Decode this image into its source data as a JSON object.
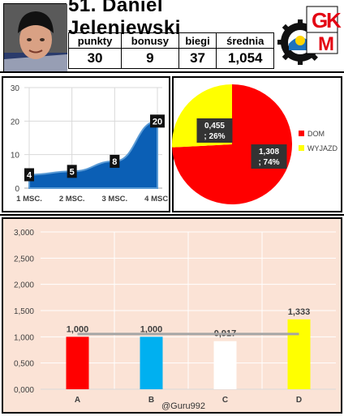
{
  "header": {
    "title": "51. Daniel Jeleniewski",
    "stats": [
      {
        "label": "punkty",
        "value": "30"
      },
      {
        "label": "bonusy",
        "value": "9"
      },
      {
        "label": "biegi",
        "value": "37"
      },
      {
        "label": "średnia",
        "value": "1,054"
      }
    ],
    "logo_text": [
      "G",
      "K",
      "M"
    ],
    "logo_colors": {
      "red": "#e30613",
      "yellow": "#ffd400",
      "blue": "#1e73be",
      "gear": "#111111"
    }
  },
  "chart_data": [
    {
      "type": "area",
      "categories": [
        "1 MSC.",
        "2 MSC.",
        "3 MSC.",
        "4 MSC."
      ],
      "values": [
        4,
        5,
        8,
        20
      ],
      "data_labels": [
        "4",
        "5",
        "8",
        "20"
      ],
      "ylim": [
        0,
        30
      ],
      "yticks": [
        "0",
        "10",
        "20",
        "30"
      ],
      "grid": true,
      "colors": {
        "fill": "#0b5fb5",
        "line": "#5b9bd5"
      }
    },
    {
      "type": "pie",
      "slices": [
        {
          "name": "DOM",
          "value": 1.308,
          "share": 74,
          "label": "1,308\n; 74%",
          "color": "#ff0000"
        },
        {
          "name": "WYJAZD",
          "value": 0.455,
          "share": 26,
          "label": "0,455\n; 26%",
          "color": "#ffff00"
        }
      ],
      "legend": "right"
    },
    {
      "type": "bar",
      "categories": [
        "A",
        "B",
        "C",
        "D"
      ],
      "values": [
        1.0,
        1.0,
        0.917,
        1.333
      ],
      "data_labels": [
        "1,000",
        "1,000",
        "0,917",
        "1,333"
      ],
      "colors": [
        "#ff0000",
        "#00b0f0",
        "#ffffff",
        "#ffff00"
      ],
      "reference_line": 1.054,
      "ylim": [
        0,
        3
      ],
      "yticks": [
        "0,000",
        "0,500",
        "1,000",
        "1,500",
        "2,000",
        "2,500",
        "3,000"
      ],
      "grid": true,
      "watermark": "@Guru992"
    }
  ]
}
